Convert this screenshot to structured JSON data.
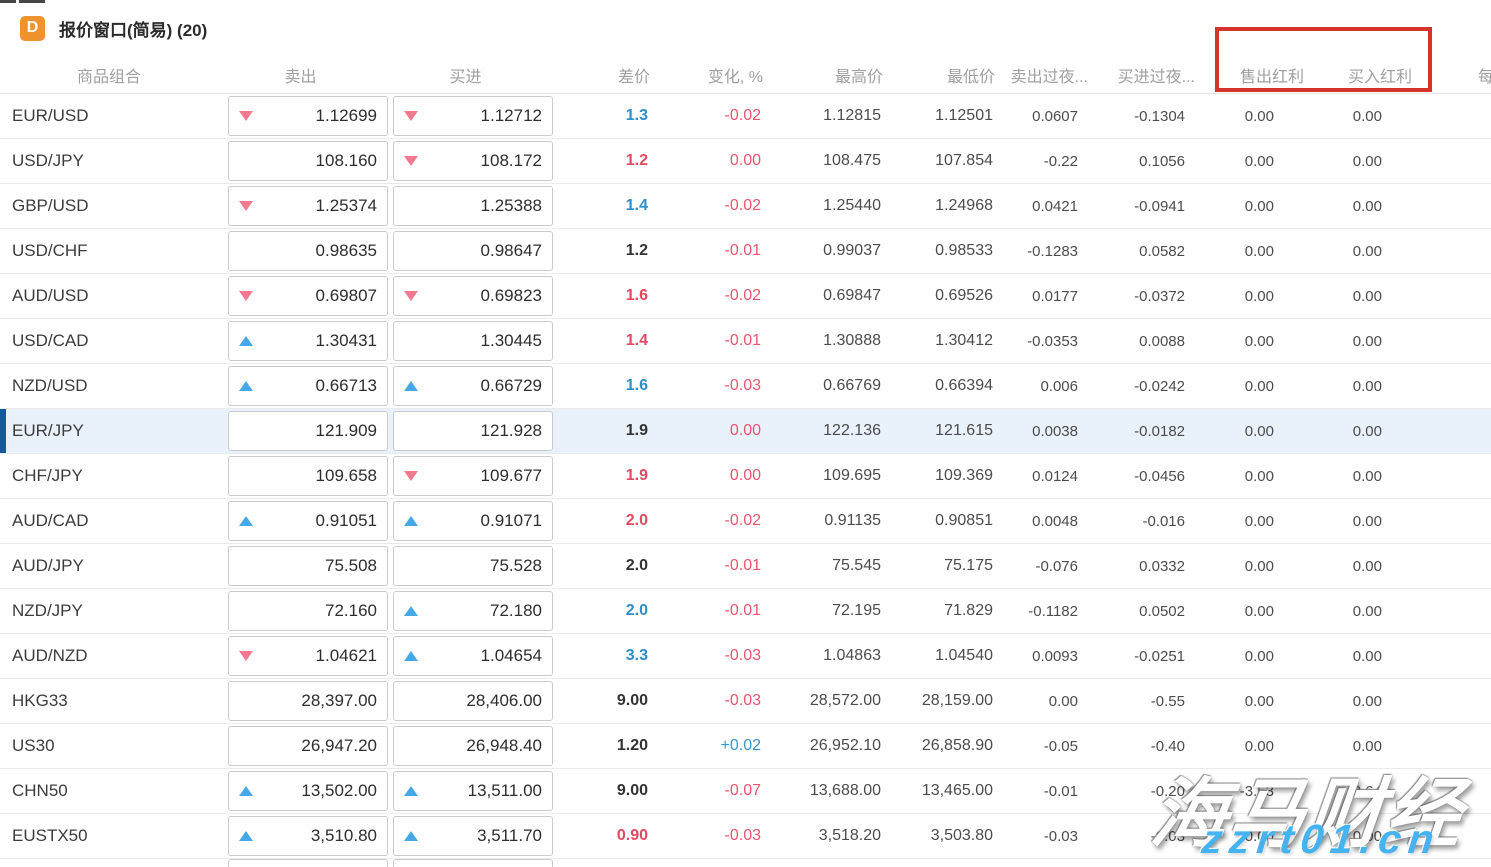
{
  "window": {
    "icon_letter": "D",
    "title": "报价窗口(简易) (20)"
  },
  "annotation": {
    "shape": "red-rectangle",
    "highlights": [
      "售出红利",
      "买入红利"
    ],
    "color": "#d5342c"
  },
  "watermark": {
    "line1": "海马财经",
    "line2": "zzrt01.cn"
  },
  "colors": {
    "up_arrow": "#47a8e8",
    "down_arrow": "#f27a90",
    "spread_blue": "#2e8ec8",
    "spread_red": "#e04a62",
    "change_red": "#e8556d",
    "change_blue": "#3a96cf",
    "selected_row_bg": "#e9f1fb",
    "selected_row_bar": "#19579b",
    "brand_orange": "#f0932f",
    "watermark_blue": "#44b3ef"
  },
  "table": {
    "columns": [
      {
        "key": "symbol",
        "label": "商品组合"
      },
      {
        "key": "bid",
        "label": "卖出"
      },
      {
        "key": "ask",
        "label": "买进"
      },
      {
        "key": "spread",
        "label": "差价"
      },
      {
        "key": "change",
        "label": "变化, %"
      },
      {
        "key": "high",
        "label": "最高价"
      },
      {
        "key": "low",
        "label": "最低价"
      },
      {
        "key": "sell_swap",
        "label": "卖出过夜..."
      },
      {
        "key": "buy_swap",
        "label": "买进过夜..."
      },
      {
        "key": "sell_dividend",
        "label": "售出红利"
      },
      {
        "key": "buy_dividend",
        "label": "买入红利"
      },
      {
        "key": "extra",
        "label": "每"
      }
    ],
    "rows": [
      {
        "symbol": "EUR/USD",
        "bid": "1.12699",
        "bid_arrow": "down",
        "ask": "1.12712",
        "ask_arrow": "down",
        "spread": "1.3",
        "spread_color": "blue",
        "change": "-0.02",
        "change_color": "red",
        "high": "1.12815",
        "low": "1.12501",
        "sell_swap": "0.0607",
        "buy_swap": "-0.1304",
        "sell_dividend": "0.00",
        "buy_dividend": "0.00",
        "selected": false
      },
      {
        "symbol": "USD/JPY",
        "bid": "108.160",
        "bid_arrow": null,
        "ask": "108.172",
        "ask_arrow": "down",
        "spread": "1.2",
        "spread_color": "red",
        "change": "0.00",
        "change_color": "red",
        "high": "108.475",
        "low": "107.854",
        "sell_swap": "-0.22",
        "buy_swap": "0.1056",
        "sell_dividend": "0.00",
        "buy_dividend": "0.00",
        "selected": false
      },
      {
        "symbol": "GBP/USD",
        "bid": "1.25374",
        "bid_arrow": "down",
        "ask": "1.25388",
        "ask_arrow": null,
        "spread": "1.4",
        "spread_color": "blue",
        "change": "-0.02",
        "change_color": "red",
        "high": "1.25440",
        "low": "1.24968",
        "sell_swap": "0.0421",
        "buy_swap": "-0.0941",
        "sell_dividend": "0.00",
        "buy_dividend": "0.00",
        "selected": false
      },
      {
        "symbol": "USD/CHF",
        "bid": "0.98635",
        "bid_arrow": null,
        "ask": "0.98647",
        "ask_arrow": null,
        "spread": "1.2",
        "spread_color": "dark",
        "change": "-0.01",
        "change_color": "red",
        "high": "0.99037",
        "low": "0.98533",
        "sell_swap": "-0.1283",
        "buy_swap": "0.0582",
        "sell_dividend": "0.00",
        "buy_dividend": "0.00",
        "selected": false
      },
      {
        "symbol": "AUD/USD",
        "bid": "0.69807",
        "bid_arrow": "down",
        "ask": "0.69823",
        "ask_arrow": "down",
        "spread": "1.6",
        "spread_color": "red",
        "change": "-0.02",
        "change_color": "red",
        "high": "0.69847",
        "low": "0.69526",
        "sell_swap": "0.0177",
        "buy_swap": "-0.0372",
        "sell_dividend": "0.00",
        "buy_dividend": "0.00",
        "selected": false
      },
      {
        "symbol": "USD/CAD",
        "bid": "1.30431",
        "bid_arrow": "up",
        "ask": "1.30445",
        "ask_arrow": null,
        "spread": "1.4",
        "spread_color": "red",
        "change": "-0.01",
        "change_color": "red",
        "high": "1.30888",
        "low": "1.30412",
        "sell_swap": "-0.0353",
        "buy_swap": "0.0088",
        "sell_dividend": "0.00",
        "buy_dividend": "0.00",
        "selected": false
      },
      {
        "symbol": "NZD/USD",
        "bid": "0.66713",
        "bid_arrow": "up",
        "ask": "0.66729",
        "ask_arrow": "up",
        "spread": "1.6",
        "spread_color": "blue",
        "change": "-0.03",
        "change_color": "red",
        "high": "0.66769",
        "low": "0.66394",
        "sell_swap": "0.006",
        "buy_swap": "-0.0242",
        "sell_dividend": "0.00",
        "buy_dividend": "0.00",
        "selected": false
      },
      {
        "symbol": "EUR/JPY",
        "bid": "121.909",
        "bid_arrow": null,
        "ask": "121.928",
        "ask_arrow": null,
        "spread": "1.9",
        "spread_color": "dark",
        "change": "0.00",
        "change_color": "red",
        "high": "122.136",
        "low": "121.615",
        "sell_swap": "0.0038",
        "buy_swap": "-0.0182",
        "sell_dividend": "0.00",
        "buy_dividend": "0.00",
        "selected": true
      },
      {
        "symbol": "CHF/JPY",
        "bid": "109.658",
        "bid_arrow": null,
        "ask": "109.677",
        "ask_arrow": "down",
        "spread": "1.9",
        "spread_color": "red",
        "change": "0.00",
        "change_color": "red",
        "high": "109.695",
        "low": "109.369",
        "sell_swap": "0.0124",
        "buy_swap": "-0.0456",
        "sell_dividend": "0.00",
        "buy_dividend": "0.00",
        "selected": false
      },
      {
        "symbol": "AUD/CAD",
        "bid": "0.91051",
        "bid_arrow": "up",
        "ask": "0.91071",
        "ask_arrow": "up",
        "spread": "2.0",
        "spread_color": "red",
        "change": "-0.02",
        "change_color": "red",
        "high": "0.91135",
        "low": "0.90851",
        "sell_swap": "0.0048",
        "buy_swap": "-0.016",
        "sell_dividend": "0.00",
        "buy_dividend": "0.00",
        "selected": false
      },
      {
        "symbol": "AUD/JPY",
        "bid": "75.508",
        "bid_arrow": null,
        "ask": "75.528",
        "ask_arrow": null,
        "spread": "2.0",
        "spread_color": "dark",
        "change": "-0.01",
        "change_color": "red",
        "high": "75.545",
        "low": "75.175",
        "sell_swap": "-0.076",
        "buy_swap": "0.0332",
        "sell_dividend": "0.00",
        "buy_dividend": "0.00",
        "selected": false
      },
      {
        "symbol": "NZD/JPY",
        "bid": "72.160",
        "bid_arrow": null,
        "ask": "72.180",
        "ask_arrow": "up",
        "spread": "2.0",
        "spread_color": "blue",
        "change": "-0.01",
        "change_color": "red",
        "high": "72.195",
        "low": "71.829",
        "sell_swap": "-0.1182",
        "buy_swap": "0.0502",
        "sell_dividend": "0.00",
        "buy_dividend": "0.00",
        "selected": false
      },
      {
        "symbol": "AUD/NZD",
        "bid": "1.04621",
        "bid_arrow": "down",
        "ask": "1.04654",
        "ask_arrow": "up",
        "spread": "3.3",
        "spread_color": "blue",
        "change": "-0.03",
        "change_color": "red",
        "high": "1.04863",
        "low": "1.04540",
        "sell_swap": "0.0093",
        "buy_swap": "-0.0251",
        "sell_dividend": "0.00",
        "buy_dividend": "0.00",
        "selected": false
      },
      {
        "symbol": "HKG33",
        "bid": "28,397.00",
        "bid_arrow": null,
        "ask": "28,406.00",
        "ask_arrow": null,
        "spread": "9.00",
        "spread_color": "dark",
        "change": "-0.03",
        "change_color": "red",
        "high": "28,572.00",
        "low": "28,159.00",
        "sell_swap": "0.00",
        "buy_swap": "-0.55",
        "sell_dividend": "0.00",
        "buy_dividend": "0.00",
        "selected": false
      },
      {
        "symbol": "US30",
        "bid": "26,947.20",
        "bid_arrow": null,
        "ask": "26,948.40",
        "ask_arrow": null,
        "spread": "1.20",
        "spread_color": "dark",
        "change": "+0.02",
        "change_color": "blue",
        "high": "26,952.10",
        "low": "26,858.90",
        "sell_swap": "-0.05",
        "buy_swap": "-0.40",
        "sell_dividend": "0.00",
        "buy_dividend": "0.00",
        "selected": false
      },
      {
        "symbol": "CHN50",
        "bid": "13,502.00",
        "bid_arrow": "up",
        "ask": "13,511.00",
        "ask_arrow": "up",
        "spread": "9.00",
        "spread_color": "dark",
        "change": "-0.07",
        "change_color": "red",
        "high": "13,688.00",
        "low": "13,465.00",
        "sell_swap": "-0.01",
        "buy_swap": "-0.20",
        "sell_dividend": "-3.53",
        "buy_dividend": "2.64",
        "selected": false
      },
      {
        "symbol": "EUSTX50",
        "bid": "3,510.80",
        "bid_arrow": "up",
        "ask": "3,511.70",
        "ask_arrow": "up",
        "spread": "0.90",
        "spread_color": "red",
        "change": "-0.03",
        "change_color": "red",
        "high": "3,518.20",
        "low": "3,503.80",
        "sell_swap": "-0.03",
        "buy_swap": "-0.03",
        "sell_dividend": "0.00",
        "buy_dividend": "0.00",
        "selected": false
      }
    ]
  }
}
